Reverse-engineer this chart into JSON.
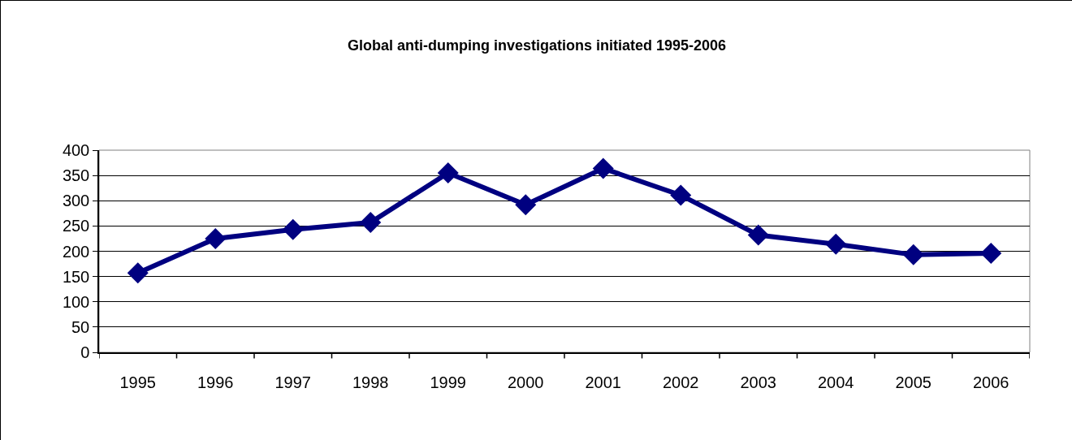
{
  "chart_data": {
    "type": "line",
    "title": "Global anti-dumping investigations initiated 1995-2006",
    "categories": [
      "1995",
      "1996",
      "1997",
      "1998",
      "1999",
      "2000",
      "2001",
      "2002",
      "2003",
      "2004",
      "2005",
      "2006"
    ],
    "series": [
      {
        "color": "#000080",
        "values": [
          157,
          225,
          243,
          257,
          355,
          292,
          364,
          311,
          232,
          214,
          193,
          196
        ]
      }
    ],
    "ylim": [
      0,
      400
    ],
    "yticks": [
      0,
      50,
      100,
      150,
      200,
      250,
      300,
      350,
      400
    ],
    "grid": "y",
    "marker": "diamond",
    "line_style": "solid"
  }
}
